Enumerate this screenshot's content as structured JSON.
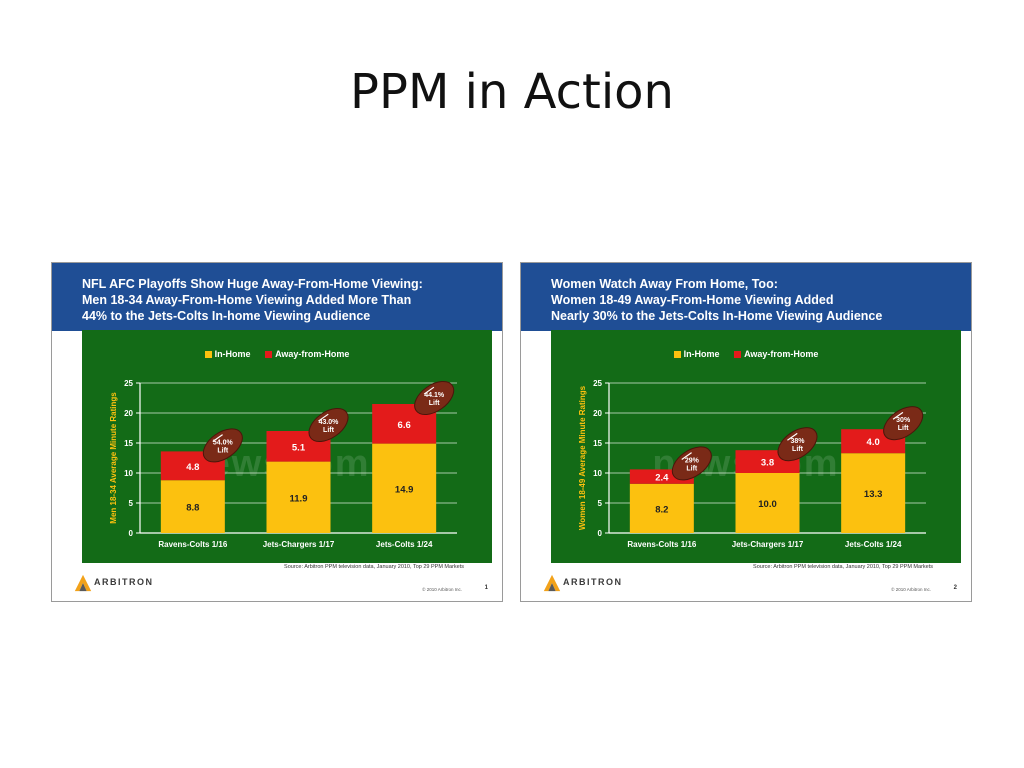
{
  "page_title": "PPM in Action",
  "colors": {
    "in_home": "#fcc10f",
    "away": "#e31b1b",
    "panel": "#136b17",
    "header": "#1f4e95"
  },
  "slides": [
    {
      "title_lines": [
        "NFL AFC Playoffs Show Huge Away-From-Home Viewing:",
        "Men 18-34 Away-From-Home Viewing Added More Than",
        "44% to the Jets-Colts In-home Viewing Audience"
      ],
      "legend": [
        "In-Home",
        "Away-from-Home"
      ],
      "source": "Source:  Arbitron PPM television data, January 2010, Top 29 PPM Markets",
      "copyright": "© 2010 Arbitron Inc.",
      "page_number": "1",
      "logo_text": "ARBITRON",
      "watermark": "newscom"
    },
    {
      "title_lines": [
        "Women Watch Away From Home, Too:",
        "Women 18-49 Away-From-Home Viewing Added",
        "Nearly 30% to the Jets-Colts In-Home Viewing Audience"
      ],
      "legend": [
        "In-Home",
        "Away-from-Home"
      ],
      "source": "Source:  Arbitron PPM television data, January 2010, Top 29 PPM Markets",
      "copyright": "© 2010 Arbitron Inc.",
      "page_number": "2",
      "logo_text": "ARBITRON",
      "watermark": "newscom"
    }
  ],
  "chart_data": [
    {
      "type": "bar",
      "stacked": true,
      "categories": [
        "Ravens-Colts 1/16",
        "Jets-Chargers 1/17",
        "Jets-Colts 1/24"
      ],
      "series": [
        {
          "name": "In-Home",
          "values": [
            8.8,
            11.9,
            14.9
          ]
        },
        {
          "name": "Away-from-Home",
          "values": [
            4.8,
            5.1,
            6.6
          ]
        }
      ],
      "lift_labels": [
        "54.0%",
        "43.0%",
        "44.1%"
      ],
      "lift_word": "Lift",
      "ylabel": "Men 18-34 Average Minute Ratings",
      "ylim": [
        0,
        25
      ],
      "yticks": [
        "0",
        "5",
        "10",
        "15",
        "20",
        "25"
      ],
      "legend_position": "top"
    },
    {
      "type": "bar",
      "stacked": true,
      "categories": [
        "Ravens-Colts 1/16",
        "Jets-Chargers 1/17",
        "Jets-Colts 1/24"
      ],
      "series": [
        {
          "name": "In-Home",
          "values": [
            8.2,
            10.0,
            13.3
          ]
        },
        {
          "name": "Away-from-Home",
          "values": [
            2.4,
            3.8,
            4.0
          ]
        }
      ],
      "lift_labels": [
        "29%",
        "38%",
        "30%"
      ],
      "lift_word": "Lift",
      "ylabel": "Women 18-49 Average Minute Ratings",
      "ylim": [
        0,
        25
      ],
      "yticks": [
        "0",
        "5",
        "10",
        "15",
        "20",
        "25"
      ],
      "legend_position": "top"
    }
  ]
}
